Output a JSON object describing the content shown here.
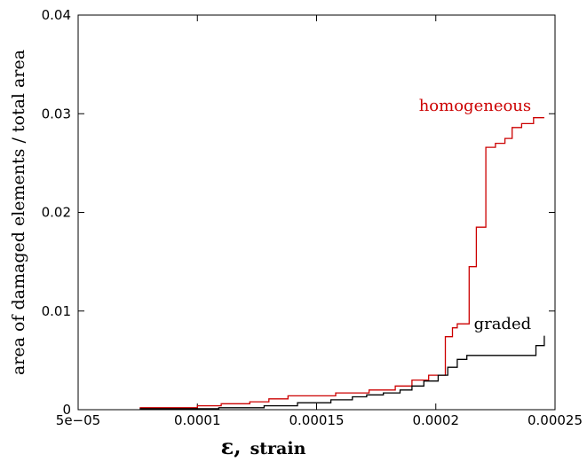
{
  "chart_data": {
    "type": "line",
    "step": true,
    "xlabel_symbol": "ε,",
    "xlabel_text": "strain",
    "ylabel": "area of damaged elements / total area",
    "xlim": [
      5e-05,
      0.00025
    ],
    "ylim": [
      0,
      0.04
    ],
    "xticks": [
      5e-05,
      0.0001,
      0.00015,
      0.0002,
      0.00025
    ],
    "xtick_labels": [
      "5e−05",
      "0.0001",
      "0.00015",
      "0.0002",
      "0.00025"
    ],
    "yticks": [
      0,
      0.01,
      0.02,
      0.03,
      0.04
    ],
    "ytick_labels": [
      "0",
      "0.01",
      "0.02",
      "0.03",
      "0.04"
    ],
    "grid": false,
    "legend": "none",
    "series": [
      {
        "name": "homogeneous",
        "color": "#cc0000",
        "x": [
          7.58e-05,
          0.0001,
          0.00011,
          0.000122,
          0.00013,
          0.000138,
          0.000158,
          0.000172,
          0.000183,
          0.00019,
          0.000197,
          0.000204,
          0.000207,
          0.000209,
          0.000214,
          0.000217,
          0.000221,
          0.000225,
          0.000229,
          0.000232,
          0.000236,
          0.000241,
          0.0002455
        ],
        "y": [
          0.0002,
          0.0004,
          0.0006,
          0.0008,
          0.0011,
          0.0014,
          0.0017,
          0.002,
          0.0024,
          0.003,
          0.0035,
          0.0074,
          0.0083,
          0.0087,
          0.0145,
          0.0185,
          0.0266,
          0.027,
          0.0275,
          0.0286,
          0.029,
          0.0296,
          0.0296
        ]
      },
      {
        "name": "graded",
        "color": "#000000",
        "x": [
          7.58e-05,
          0.000109,
          0.000128,
          0.000142,
          0.000156,
          0.000165,
          0.000171,
          0.000178,
          0.000185,
          0.00019,
          0.000195,
          0.000201,
          0.000205,
          0.000209,
          0.000213,
          0.000242,
          0.0002455
        ],
        "y": [
          0.0001,
          0.0002,
          0.0004,
          0.0007,
          0.001,
          0.0013,
          0.0015,
          0.0017,
          0.002,
          0.0024,
          0.0029,
          0.0035,
          0.0043,
          0.0051,
          0.0055,
          0.0065,
          0.0075
        ]
      }
    ],
    "annotations": [
      {
        "text": "homogeneous",
        "color": "#cc0000",
        "x": 0.00024,
        "y": 0.0303
      },
      {
        "text": "graded",
        "color": "#000000",
        "x": 0.00024,
        "y": 0.0082
      }
    ]
  }
}
